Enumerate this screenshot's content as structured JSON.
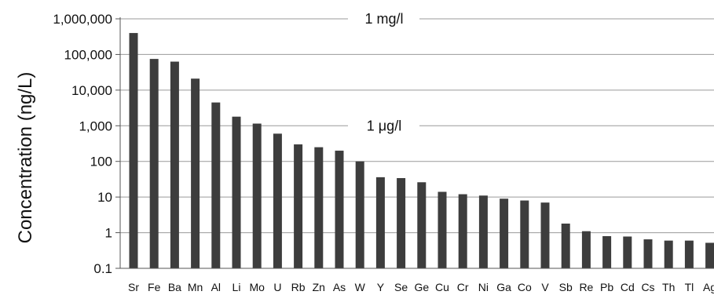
{
  "chart_data": {
    "type": "bar",
    "scale": "log",
    "ylabel": "Concentration (ng/L)",
    "ylim": [
      0.1,
      1000000
    ],
    "y_ticks": [
      "0.1",
      "1",
      "10",
      "100",
      "1,000",
      "10,000",
      "100,000",
      "1,000,000"
    ],
    "grid": "horizontal",
    "bar_color": "#3d3d3d",
    "categories": [
      "Sr",
      "Fe",
      "Ba",
      "Mn",
      "Al",
      "Li",
      "Mo",
      "U",
      "Rb",
      "Zn",
      "As",
      "W",
      "Y",
      "Se",
      "Ge",
      "Cu",
      "Cr",
      "Ni",
      "Ga",
      "Co",
      "V",
      "Sb",
      "Re",
      "Pb",
      "Cd",
      "Cs",
      "Th",
      "Tl",
      "Ag"
    ],
    "values": [
      400000,
      75000,
      63000,
      21000,
      4500,
      1800,
      1150,
      600,
      300,
      250,
      200,
      100,
      36,
      34,
      26,
      14,
      12,
      11,
      9,
      8,
      7,
      1.8,
      1.1,
      0.8,
      0.78,
      0.65,
      0.6,
      0.6,
      0.52
    ],
    "annotations": [
      {
        "text": "1 mg/l",
        "y": 1000000
      },
      {
        "text": "1 μg/l",
        "y": 1000
      }
    ]
  }
}
